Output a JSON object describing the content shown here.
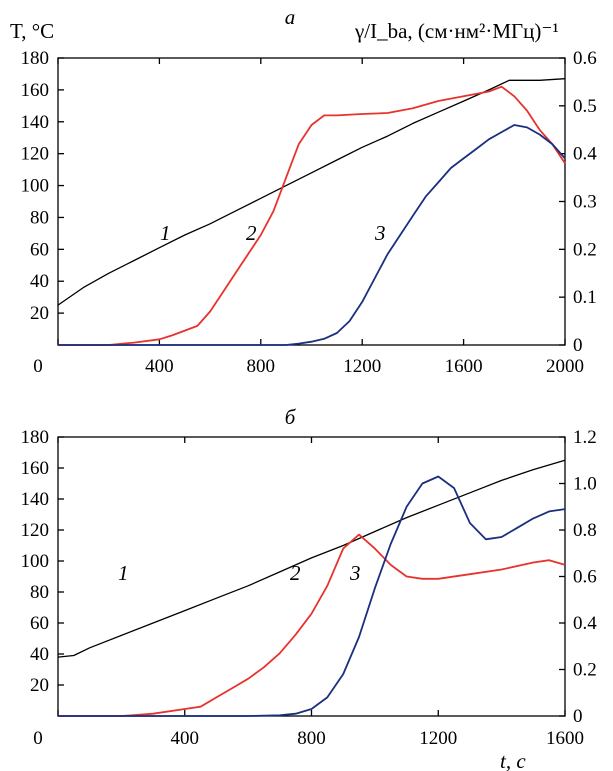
{
  "chart_data": [
    {
      "type": "line",
      "panel_label": "а",
      "ylabel_left": "T, °C",
      "ylabel_right": "γ/I_ba, (см·нм²·МГц)⁻¹",
      "xlabel": "",
      "xlim": [
        0,
        2000
      ],
      "ylim_left": [
        0,
        180
      ],
      "ylim_right": [
        0,
        0.6
      ],
      "x_ticks": [
        "0",
        "400",
        "800",
        "1200",
        "1600",
        "2000"
      ],
      "y_ticks_left": [
        "20",
        "40",
        "60",
        "80",
        "100",
        "120",
        "140",
        "160",
        "180"
      ],
      "y_ticks_right": [
        "0",
        "0.1",
        "0.2",
        "0.3",
        "0.4",
        "0.5",
        "0.6"
      ],
      "grid": false,
      "series": [
        {
          "name": "1",
          "axis": "left",
          "color": "#000000",
          "x": [
            0,
            100,
            200,
            300,
            400,
            500,
            600,
            700,
            800,
            900,
            1000,
            1100,
            1200,
            1300,
            1400,
            1500,
            1600,
            1700,
            1780,
            1800,
            1900,
            2000
          ],
          "y": [
            25,
            36,
            45,
            53,
            61,
            69,
            76,
            84,
            92,
            100,
            108,
            116,
            124,
            131,
            139,
            146,
            153,
            160,
            166,
            166,
            166,
            167
          ]
        },
        {
          "name": "2",
          "axis": "right",
          "color": "#e8322d",
          "x": [
            0,
            200,
            300,
            400,
            450,
            500,
            550,
            600,
            650,
            700,
            750,
            800,
            850,
            900,
            950,
            1000,
            1050,
            1100,
            1200,
            1300,
            1400,
            1500,
            1600,
            1650,
            1700,
            1750,
            1800,
            1850,
            1900,
            1950,
            2000
          ],
          "y": [
            0.0,
            0.0,
            0.005,
            0.012,
            0.02,
            0.03,
            0.04,
            0.07,
            0.11,
            0.15,
            0.19,
            0.23,
            0.28,
            0.35,
            0.42,
            0.46,
            0.48,
            0.48,
            0.483,
            0.485,
            0.495,
            0.51,
            0.52,
            0.525,
            0.53,
            0.54,
            0.52,
            0.49,
            0.45,
            0.42,
            0.38
          ]
        },
        {
          "name": "3",
          "axis": "right",
          "color": "#1a2f80",
          "x": [
            0,
            800,
            900,
            950,
            1000,
            1050,
            1100,
            1150,
            1200,
            1250,
            1300,
            1350,
            1400,
            1450,
            1500,
            1550,
            1600,
            1650,
            1700,
            1750,
            1800,
            1850,
            1900,
            1950,
            2000
          ],
          "y": [
            0.0,
            0.0,
            0.0,
            0.003,
            0.007,
            0.013,
            0.025,
            0.05,
            0.09,
            0.14,
            0.19,
            0.23,
            0.27,
            0.31,
            0.34,
            0.37,
            0.39,
            0.41,
            0.43,
            0.445,
            0.46,
            0.455,
            0.44,
            0.42,
            0.39
          ]
        }
      ]
    },
    {
      "type": "line",
      "panel_label": "б",
      "ylabel_left": "",
      "ylabel_right": "",
      "xlabel": "t, с",
      "xlim": [
        0,
        1600
      ],
      "ylim_left": [
        0,
        180
      ],
      "ylim_right": [
        0,
        1.2
      ],
      "x_ticks": [
        "0",
        "400",
        "800",
        "1200",
        "1600"
      ],
      "y_ticks_left": [
        "20",
        "40",
        "60",
        "80",
        "100",
        "120",
        "140",
        "160",
        "180"
      ],
      "y_ticks_right": [
        "0",
        "0.2",
        "0.4",
        "0.6",
        "0.8",
        "1.0",
        "1.2"
      ],
      "grid": false,
      "series": [
        {
          "name": "1",
          "axis": "left",
          "color": "#000000",
          "x": [
            0,
            50,
            100,
            200,
            300,
            400,
            500,
            600,
            700,
            800,
            900,
            1000,
            1100,
            1200,
            1300,
            1400,
            1500,
            1600
          ],
          "y": [
            38,
            39,
            44,
            52,
            60,
            68,
            76,
            84,
            93,
            102,
            110,
            119,
            128,
            136,
            144,
            152,
            159,
            165
          ]
        },
        {
          "name": "2",
          "axis": "right",
          "color": "#e8322d",
          "x": [
            0,
            200,
            300,
            400,
            450,
            500,
            550,
            600,
            650,
            700,
            750,
            800,
            850,
            900,
            950,
            1000,
            1050,
            1100,
            1150,
            1200,
            1300,
            1400,
            1500,
            1550,
            1600
          ],
          "y": [
            0.0,
            0.0,
            0.01,
            0.03,
            0.04,
            0.08,
            0.12,
            0.16,
            0.21,
            0.27,
            0.35,
            0.44,
            0.56,
            0.72,
            0.78,
            0.72,
            0.65,
            0.6,
            0.59,
            0.59,
            0.61,
            0.63,
            0.66,
            0.67,
            0.65
          ]
        },
        {
          "name": "3",
          "axis": "right",
          "color": "#1a2f80",
          "x": [
            0,
            600,
            700,
            750,
            800,
            850,
            900,
            950,
            1000,
            1050,
            1100,
            1150,
            1200,
            1250,
            1300,
            1350,
            1400,
            1450,
            1500,
            1550,
            1600
          ],
          "y": [
            0.0,
            0.0,
            0.003,
            0.01,
            0.03,
            0.08,
            0.18,
            0.34,
            0.55,
            0.74,
            0.9,
            1.0,
            1.03,
            0.98,
            0.83,
            0.76,
            0.77,
            0.81,
            0.85,
            0.88,
            0.89
          ]
        }
      ]
    }
  ]
}
